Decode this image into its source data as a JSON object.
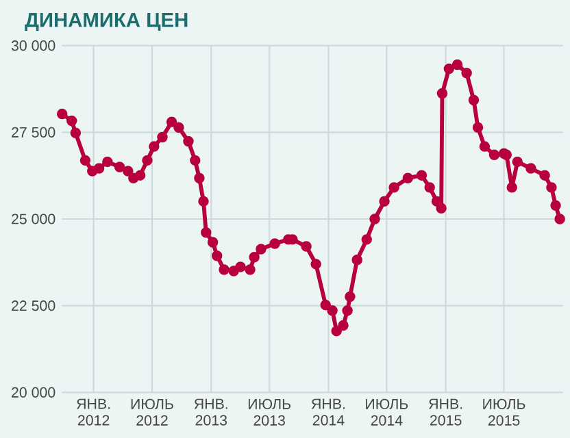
{
  "chart_data": {
    "type": "line",
    "title": "ДИНАМИКА ЦЕН",
    "x": [
      "2011-09-25",
      "2011-10-25",
      "2011-11-06",
      "2011-12-06",
      "2011-12-28",
      "2012-01-18",
      "2012-02-13",
      "2012-03-22",
      "2012-04-17",
      "2012-05-04",
      "2012-05-25",
      "2012-06-16",
      "2012-07-07",
      "2012-08-02",
      "2012-08-31",
      "2012-09-22",
      "2012-10-22",
      "2012-11-12",
      "2012-11-25",
      "2012-12-08",
      "2012-12-16",
      "2013-01-06",
      "2013-01-19",
      "2013-02-10",
      "2013-03-12",
      "2013-04-02",
      "2013-05-02",
      "2013-05-15",
      "2013-06-05",
      "2013-07-18",
      "2013-08-29",
      "2013-09-11",
      "2013-10-24",
      "2013-11-23",
      "2013-12-23",
      "2014-01-13",
      "2014-01-26",
      "2014-02-16",
      "2014-03-01",
      "2014-03-09",
      "2014-03-31",
      "2014-04-30",
      "2014-05-25",
      "2014-06-24",
      "2014-07-24",
      "2014-09-05",
      "2014-10-18",
      "2014-11-12",
      "2014-12-04",
      "2014-12-18",
      "2014-12-21",
      "2015-01-11",
      "2015-02-06",
      "2015-03-07",
      "2015-03-29",
      "2015-04-11",
      "2015-05-02",
      "2015-06-01",
      "2015-07-01",
      "2015-07-09",
      "2015-07-26",
      "2015-08-12",
      "2015-09-23",
      "2015-11-05",
      "2015-11-26",
      "2015-12-09",
      "2015-12-22"
    ],
    "series": [
      {
        "color": "#b8003c",
        "values": [
          28030,
          27830,
          27480,
          26690,
          26380,
          26460,
          26650,
          26500,
          26380,
          26180,
          26260,
          26690,
          27090,
          27360,
          27800,
          27640,
          27240,
          26690,
          26180,
          25510,
          24610,
          24330,
          23940,
          23540,
          23500,
          23620,
          23540,
          23900,
          24130,
          24290,
          24410,
          24410,
          24210,
          23700,
          22520,
          22360,
          21770,
          21930,
          22360,
          22760,
          23820,
          24410,
          25000,
          25510,
          25910,
          26180,
          26260,
          25910,
          25510,
          25310,
          28620,
          29330,
          29450,
          29210,
          28430,
          27640,
          27090,
          26850,
          26890,
          26850,
          25910,
          26650,
          26460,
          26260,
          25910,
          25390,
          25000
        ]
      }
    ],
    "xlim": [
      "2011-09-25",
      "2015-12-31"
    ],
    "xticks": [
      {
        "value": "2012-01-01",
        "label": "ЯНВ. 2012"
      },
      {
        "value": "2012-07-01",
        "label": "ИЮЛЬ 2012"
      },
      {
        "value": "2013-01-01",
        "label": "ЯНВ. 2013"
      },
      {
        "value": "2013-07-01",
        "label": "ИЮЛЬ 2013"
      },
      {
        "value": "2014-01-01",
        "label": "ЯНВ. 2014"
      },
      {
        "value": "2014-07-01",
        "label": "ИЮЛЬ 2014"
      },
      {
        "value": "2015-01-01",
        "label": "ЯНВ. 2015"
      },
      {
        "value": "2015-07-01",
        "label": "ИЮЛЬ 2015"
      }
    ],
    "ylim": [
      20000,
      30000
    ],
    "yticks": [
      {
        "value": 20000,
        "label": "20 000"
      },
      {
        "value": 22500,
        "label": "22 500"
      },
      {
        "value": 25000,
        "label": "25 000"
      },
      {
        "value": 27500,
        "label": "27 500"
      },
      {
        "value": 30000,
        "label": "30 000"
      }
    ],
    "grid": true,
    "marker": "circle",
    "line_style": "solid"
  }
}
